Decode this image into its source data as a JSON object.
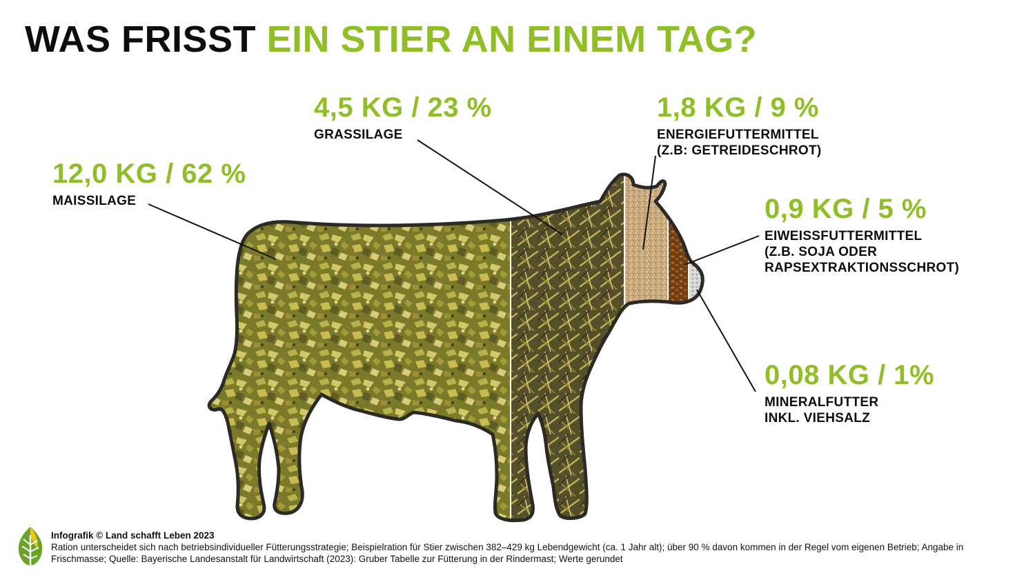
{
  "title": {
    "part1": "WAS FRISST",
    "part2": "EIN STIER AN EINEM TAG?"
  },
  "colors": {
    "accent": "#8fbe27",
    "text": "#0d0d0d",
    "cow_outline": "#2b2a24"
  },
  "items": [
    {
      "value": "12,0 KG / 62 %",
      "label_lines": [
        "MAISSILAGE"
      ]
    },
    {
      "value": "4,5 KG / 23 %",
      "label_lines": [
        "GRASSILAGE"
      ]
    },
    {
      "value": "1,8 KG / 9 %",
      "label_lines": [
        "ENERGIEFUTTERMITTEL",
        "(Z.B: GETREIDESCHROT)"
      ]
    },
    {
      "value": "0,9 KG / 5 %",
      "label_lines": [
        "EIWEISSFUTTERMITTEL",
        "(Z.B. SOJA ODER",
        "RAPSEXTRAKTIONSSCHROT)"
      ]
    },
    {
      "value": "0,08 KG / 1%",
      "label_lines": [
        "MINERALFUTTER",
        "INKL. VIEHSALZ"
      ]
    }
  ],
  "chart_data": {
    "type": "table",
    "title": "WAS FRISST EIN STIER AN EINEM TAG?",
    "categories": [
      "MAISSILAGE",
      "GRASSILAGE",
      "ENERGIEFUTTERMITTEL (Z.B: GETREIDESCHROT)",
      "EIWEISSFUTTERMITTEL (Z.B. SOJA ODER RAPSEXTRAKTIONSSCHROT)",
      "MINERALFUTTER INKL. VIEHSALZ"
    ],
    "series": [
      {
        "name": "KG",
        "values": [
          12.0,
          4.5,
          1.8,
          0.9,
          0.08
        ]
      },
      {
        "name": "%",
        "values": [
          62,
          23,
          9,
          5,
          1
        ]
      }
    ]
  },
  "footer": {
    "credit": "Infografik © Land schafft Leben 2023",
    "note": "Ration unterscheidet sich nach betriebsindividueller Fütterungsstrategie; Beispielration für Stier zwischen 382–429 kg Lebendgewicht (ca. 1 Jahr alt); über 90 % davon kommen in der Regel vom eigenen Betrieb; Angabe in Frischmasse; Quelle: Bayerische Landesanstalt für Landwirtschaft (2023): Gruber Tabelle zur Fütterung in der Rindermast; Werte gerundet",
    "logo_icon": "leaf-logo-icon"
  }
}
